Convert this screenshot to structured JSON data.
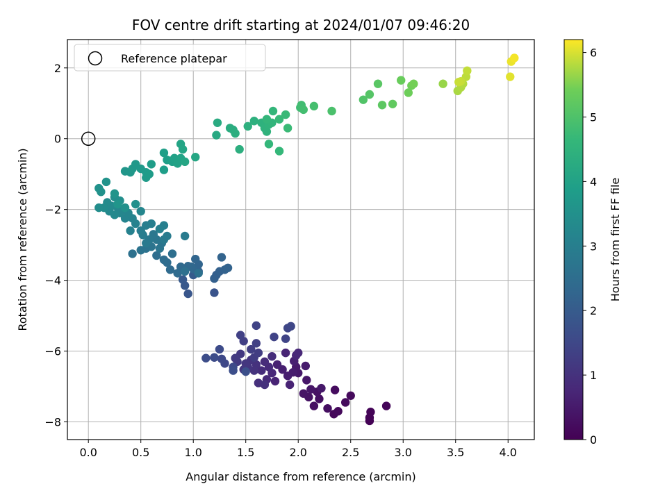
{
  "chart_data": {
    "type": "scatter",
    "title": "FOV centre drift starting at 2024/01/07 09:46:20",
    "xlabel": "Angular distance from reference (arcmin)",
    "ylabel": "Rotation from reference (arcmin)",
    "xlim": [
      -0.2,
      4.25
    ],
    "ylim": [
      -8.5,
      2.8
    ],
    "xticks": [
      0.0,
      0.5,
      1.0,
      1.5,
      2.0,
      2.5,
      3.0,
      3.5,
      4.0
    ],
    "xtick_labels": [
      "0.0",
      "0.5",
      "1.0",
      "1.5",
      "2.0",
      "2.5",
      "3.0",
      "3.5",
      "4.0"
    ],
    "yticks": [
      -8,
      -6,
      -4,
      -2,
      0,
      2
    ],
    "ytick_labels": [
      "−8",
      "−6",
      "−4",
      "−2",
      "0",
      "2"
    ],
    "grid": true,
    "colormap": "viridis",
    "colorbar": {
      "label": "Hours from first FF file",
      "range": [
        0,
        6.2
      ],
      "ticks": [
        0,
        1,
        2,
        3,
        4,
        5,
        6
      ],
      "tick_labels": [
        "0",
        "1",
        "2",
        "3",
        "4",
        "5",
        "6"
      ]
    },
    "reference": {
      "x": 0.0,
      "y": 0.0,
      "label": "Reference platepar"
    },
    "legend_position": "top-left",
    "points": [
      [
        2.68,
        -7.97,
        0.02
      ],
      [
        2.68,
        -7.88,
        0.04
      ],
      [
        2.69,
        -7.72,
        0.06
      ],
      [
        2.84,
        -7.55,
        0.08
      ],
      [
        2.34,
        -7.78,
        0.12
      ],
      [
        2.38,
        -7.7,
        0.15
      ],
      [
        2.5,
        -7.26,
        0.18
      ],
      [
        2.45,
        -7.45,
        0.2
      ],
      [
        2.35,
        -7.1,
        0.22
      ],
      [
        2.28,
        -7.62,
        0.25
      ],
      [
        2.2,
        -7.35,
        0.28
      ],
      [
        2.15,
        -7.55,
        0.3
      ],
      [
        2.18,
        -7.15,
        0.32
      ],
      [
        2.1,
        -7.3,
        0.35
      ],
      [
        2.05,
        -7.2,
        0.38
      ],
      [
        2.12,
        -7.08,
        0.4
      ],
      [
        2.08,
        -6.82,
        0.42
      ],
      [
        2.22,
        -7.05,
        0.45
      ],
      [
        2.0,
        -6.62,
        0.48
      ],
      [
        1.98,
        -6.45,
        0.5
      ],
      [
        2.07,
        -6.42,
        0.52
      ],
      [
        1.95,
        -6.6,
        0.55
      ],
      [
        1.9,
        -6.7,
        0.58
      ],
      [
        1.85,
        -6.52,
        0.6
      ],
      [
        1.96,
        -6.28,
        0.62
      ],
      [
        1.8,
        -6.38,
        0.65
      ],
      [
        1.92,
        -6.95,
        0.68
      ],
      [
        1.78,
        -6.85,
        0.7
      ],
      [
        1.88,
        -6.05,
        0.72
      ],
      [
        1.98,
        -6.12,
        0.75
      ],
      [
        2.0,
        -6.05,
        0.78
      ],
      [
        1.75,
        -6.62,
        0.8
      ],
      [
        1.7,
        -6.8,
        0.82
      ],
      [
        1.72,
        -6.45,
        0.85
      ],
      [
        1.68,
        -6.3,
        0.88
      ],
      [
        1.65,
        -6.55,
        0.9
      ],
      [
        1.75,
        -6.15,
        0.92
      ],
      [
        1.62,
        -6.9,
        0.95
      ],
      [
        1.68,
        -6.95,
        0.98
      ],
      [
        1.6,
        -6.38,
        1.0
      ],
      [
        1.58,
        -6.55,
        1.02
      ],
      [
        1.55,
        -6.25,
        1.05
      ],
      [
        1.52,
        -6.45,
        1.08
      ],
      [
        1.5,
        -6.35,
        1.1
      ],
      [
        1.48,
        -6.52,
        1.12
      ],
      [
        1.45,
        -6.08,
        1.15
      ],
      [
        1.42,
        -6.3,
        1.18
      ],
      [
        1.4,
        -6.2,
        1.2
      ],
      [
        1.58,
        -6.18,
        1.22
      ],
      [
        1.62,
        -6.05,
        1.25
      ],
      [
        1.55,
        -5.95,
        1.28
      ],
      [
        1.48,
        -5.72,
        1.3
      ],
      [
        1.6,
        -5.78,
        1.32
      ],
      [
        1.45,
        -5.55,
        1.35
      ],
      [
        1.6,
        -5.28,
        1.38
      ],
      [
        1.77,
        -5.6,
        1.4
      ],
      [
        1.88,
        -5.65,
        1.42
      ],
      [
        1.9,
        -5.35,
        1.45
      ],
      [
        1.93,
        -5.3,
        1.48
      ],
      [
        1.3,
        -6.35,
        1.5
      ],
      [
        1.27,
        -6.22,
        1.52
      ],
      [
        1.38,
        -6.45,
        1.55
      ],
      [
        1.25,
        -5.95,
        1.58
      ],
      [
        1.2,
        -6.18,
        1.6
      ],
      [
        1.12,
        -6.2,
        1.62
      ],
      [
        1.38,
        -6.55,
        1.65
      ],
      [
        1.5,
        -6.58,
        1.68
      ],
      [
        1.2,
        -4.35,
        1.8
      ],
      [
        0.95,
        -4.38,
        1.85
      ],
      [
        0.92,
        -4.15,
        1.9
      ],
      [
        0.9,
        -3.98,
        1.95
      ],
      [
        1.0,
        -3.85,
        2.0
      ],
      [
        1.05,
        -3.75,
        2.05
      ],
      [
        1.22,
        -3.85,
        2.1
      ],
      [
        1.2,
        -3.95,
        2.12
      ],
      [
        1.25,
        -3.75,
        2.15
      ],
      [
        1.3,
        -3.7,
        2.18
      ],
      [
        1.33,
        -3.65,
        2.2
      ],
      [
        1.27,
        -3.35,
        2.22
      ],
      [
        1.05,
        -3.55,
        2.25
      ],
      [
        1.02,
        -3.4,
        2.28
      ],
      [
        1.0,
        -3.68,
        2.3
      ],
      [
        0.98,
        -3.62,
        2.32
      ],
      [
        0.95,
        -3.6,
        2.35
      ],
      [
        0.88,
        -3.62,
        2.38
      ],
      [
        0.85,
        -3.8,
        2.4
      ],
      [
        0.78,
        -3.7,
        2.42
      ],
      [
        0.75,
        -3.5,
        2.45
      ],
      [
        0.72,
        -3.42,
        2.48
      ],
      [
        0.65,
        -3.3,
        2.5
      ],
      [
        0.8,
        -3.25,
        2.52
      ],
      [
        0.92,
        -3.75,
        2.55
      ],
      [
        1.05,
        -3.8,
        2.58
      ],
      [
        0.42,
        -3.25,
        2.6
      ],
      [
        0.55,
        -3.1,
        2.62
      ],
      [
        0.5,
        -3.15,
        2.65
      ],
      [
        0.6,
        -3.05,
        2.68
      ],
      [
        0.68,
        -3.1,
        2.7
      ],
      [
        0.7,
        -2.95,
        2.72
      ],
      [
        0.65,
        -2.85,
        2.75
      ],
      [
        0.62,
        -2.7,
        2.78
      ],
      [
        0.58,
        -2.85,
        2.8
      ],
      [
        0.55,
        -2.95,
        2.82
      ],
      [
        0.72,
        -2.85,
        2.85
      ],
      [
        0.92,
        -2.75,
        2.88
      ],
      [
        0.75,
        -2.75,
        2.9
      ],
      [
        0.52,
        -2.72,
        2.92
      ],
      [
        0.5,
        -2.6,
        2.95
      ],
      [
        0.55,
        -2.45,
        2.98
      ],
      [
        0.6,
        -2.4,
        3.0
      ],
      [
        0.72,
        -2.45,
        3.02
      ],
      [
        0.68,
        -2.55,
        3.05
      ],
      [
        0.4,
        -2.6,
        3.08
      ],
      [
        0.45,
        -2.4,
        3.1
      ],
      [
        0.42,
        -2.25,
        3.12
      ],
      [
        0.35,
        -2.25,
        3.15
      ],
      [
        0.38,
        -2.1,
        3.18
      ],
      [
        0.5,
        -2.05,
        3.2
      ],
      [
        0.3,
        -2.1,
        3.22
      ],
      [
        0.28,
        -1.95,
        3.25
      ],
      [
        0.25,
        -2.15,
        3.28
      ],
      [
        0.2,
        -2.05,
        3.3
      ],
      [
        0.22,
        -1.9,
        3.32
      ],
      [
        0.18,
        -1.8,
        3.35
      ],
      [
        0.15,
        -1.95,
        3.38
      ],
      [
        0.1,
        -1.95,
        3.4
      ],
      [
        0.25,
        -1.65,
        3.42
      ],
      [
        0.3,
        -1.75,
        3.45
      ],
      [
        0.45,
        -1.85,
        3.48
      ],
      [
        0.35,
        -1.95,
        3.5
      ],
      [
        0.12,
        -1.5,
        3.52
      ],
      [
        0.1,
        -1.4,
        3.55
      ],
      [
        0.17,
        -1.22,
        3.58
      ],
      [
        0.25,
        -1.55,
        3.6
      ],
      [
        0.28,
        -1.85,
        3.62
      ],
      [
        0.35,
        -0.92,
        3.65
      ],
      [
        0.4,
        -0.95,
        3.68
      ],
      [
        0.42,
        -0.85,
        3.7
      ],
      [
        0.45,
        -0.72,
        3.72
      ],
      [
        0.5,
        -0.85,
        3.75
      ],
      [
        0.55,
        -0.95,
        3.78
      ],
      [
        0.55,
        -1.1,
        3.8
      ],
      [
        0.58,
        -1.0,
        3.82
      ],
      [
        0.6,
        -0.72,
        3.85
      ],
      [
        0.72,
        -0.88,
        3.88
      ],
      [
        0.75,
        -0.6,
        3.9
      ],
      [
        0.72,
        -0.4,
        3.92
      ],
      [
        0.8,
        -0.65,
        3.95
      ],
      [
        0.82,
        -0.55,
        3.98
      ],
      [
        0.85,
        -0.7,
        4.0
      ],
      [
        0.88,
        -0.55,
        4.02
      ],
      [
        0.88,
        -0.15,
        4.05
      ],
      [
        0.9,
        -0.3,
        4.08
      ],
      [
        0.92,
        -0.65,
        4.1
      ],
      [
        1.02,
        -0.52,
        4.12
      ],
      [
        1.22,
        0.1,
        4.2
      ],
      [
        1.23,
        0.45,
        4.25
      ],
      [
        1.35,
        0.3,
        4.3
      ],
      [
        1.38,
        0.25,
        4.32
      ],
      [
        1.4,
        0.15,
        4.35
      ],
      [
        1.44,
        -0.3,
        4.38
      ],
      [
        1.52,
        0.35,
        4.4
      ],
      [
        1.58,
        0.5,
        4.42
      ],
      [
        1.65,
        0.45,
        4.45
      ],
      [
        1.68,
        0.3,
        4.48
      ],
      [
        1.7,
        0.2,
        4.5
      ],
      [
        1.72,
        0.4,
        4.52
      ],
      [
        1.75,
        0.45,
        4.55
      ],
      [
        1.76,
        0.78,
        4.58
      ],
      [
        1.7,
        0.55,
        4.6
      ],
      [
        1.72,
        -0.15,
        4.62
      ],
      [
        1.82,
        -0.35,
        4.65
      ],
      [
        1.82,
        0.55,
        4.68
      ],
      [
        1.88,
        0.68,
        4.7
      ],
      [
        1.9,
        0.3,
        4.72
      ],
      [
        2.02,
        0.88,
        4.8
      ],
      [
        2.03,
        0.95,
        4.82
      ],
      [
        2.05,
        0.82,
        4.85
      ],
      [
        2.15,
        0.92,
        4.88
      ],
      [
        2.32,
        0.78,
        4.95
      ],
      [
        2.62,
        1.1,
        5.05
      ],
      [
        2.68,
        1.25,
        5.1
      ],
      [
        2.76,
        1.55,
        5.15
      ],
      [
        2.8,
        0.95,
        5.2
      ],
      [
        2.9,
        0.98,
        5.25
      ],
      [
        2.98,
        1.65,
        5.35
      ],
      [
        3.05,
        1.3,
        5.4
      ],
      [
        3.08,
        1.5,
        5.42
      ],
      [
        3.1,
        1.55,
        5.45
      ],
      [
        3.38,
        1.55,
        5.65
      ],
      [
        3.52,
        1.35,
        5.75
      ],
      [
        3.55,
        1.45,
        5.78
      ],
      [
        3.57,
        1.55,
        5.8
      ],
      [
        3.6,
        1.75,
        5.85
      ],
      [
        3.61,
        1.92,
        5.88
      ],
      [
        3.55,
        1.62,
        5.9
      ],
      [
        3.53,
        1.6,
        5.92
      ],
      [
        4.02,
        1.75,
        6.05
      ],
      [
        4.03,
        2.18,
        6.1
      ],
      [
        4.06,
        2.28,
        6.15
      ]
    ]
  }
}
